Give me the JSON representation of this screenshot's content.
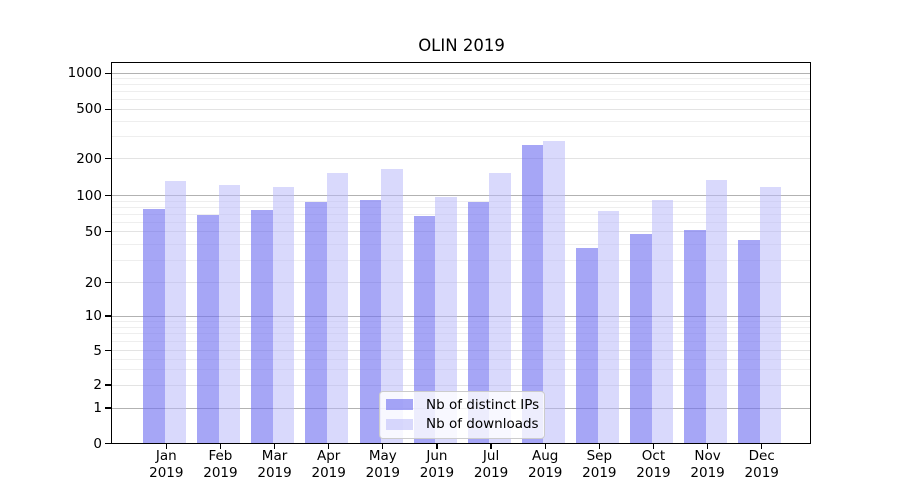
{
  "title": "OLIN 2019",
  "chart_data": {
    "type": "bar",
    "title": "OLIN 2019",
    "yscale": "symlog",
    "grid": true,
    "legend_position": "lower center",
    "categories": [
      "Jan",
      "Feb",
      "Mar",
      "Apr",
      "May",
      "Jun",
      "Jul",
      "Aug",
      "Sep",
      "Oct",
      "Nov",
      "Dec"
    ],
    "x_year_label": "2019",
    "y_ticks": [
      0,
      1,
      2,
      5,
      10,
      20,
      50,
      100,
      200,
      500,
      1000
    ],
    "y_tick_labels": [
      "0",
      "1",
      "2",
      "5",
      "10",
      "20",
      "50",
      "100",
      "200",
      "500",
      "1000"
    ],
    "series": [
      {
        "name": "Nb of distinct IPs",
        "color": "rgba(112,112,240,0.62)",
        "values": [
          77,
          69,
          76,
          89,
          91,
          68,
          89,
          256,
          37,
          48,
          52,
          43
        ]
      },
      {
        "name": "Nb of downloads",
        "color": "rgba(186,186,250,0.55)",
        "values": [
          131,
          122,
          118,
          153,
          164,
          98,
          152,
          277,
          74,
          91,
          133,
          118
        ]
      }
    ]
  }
}
